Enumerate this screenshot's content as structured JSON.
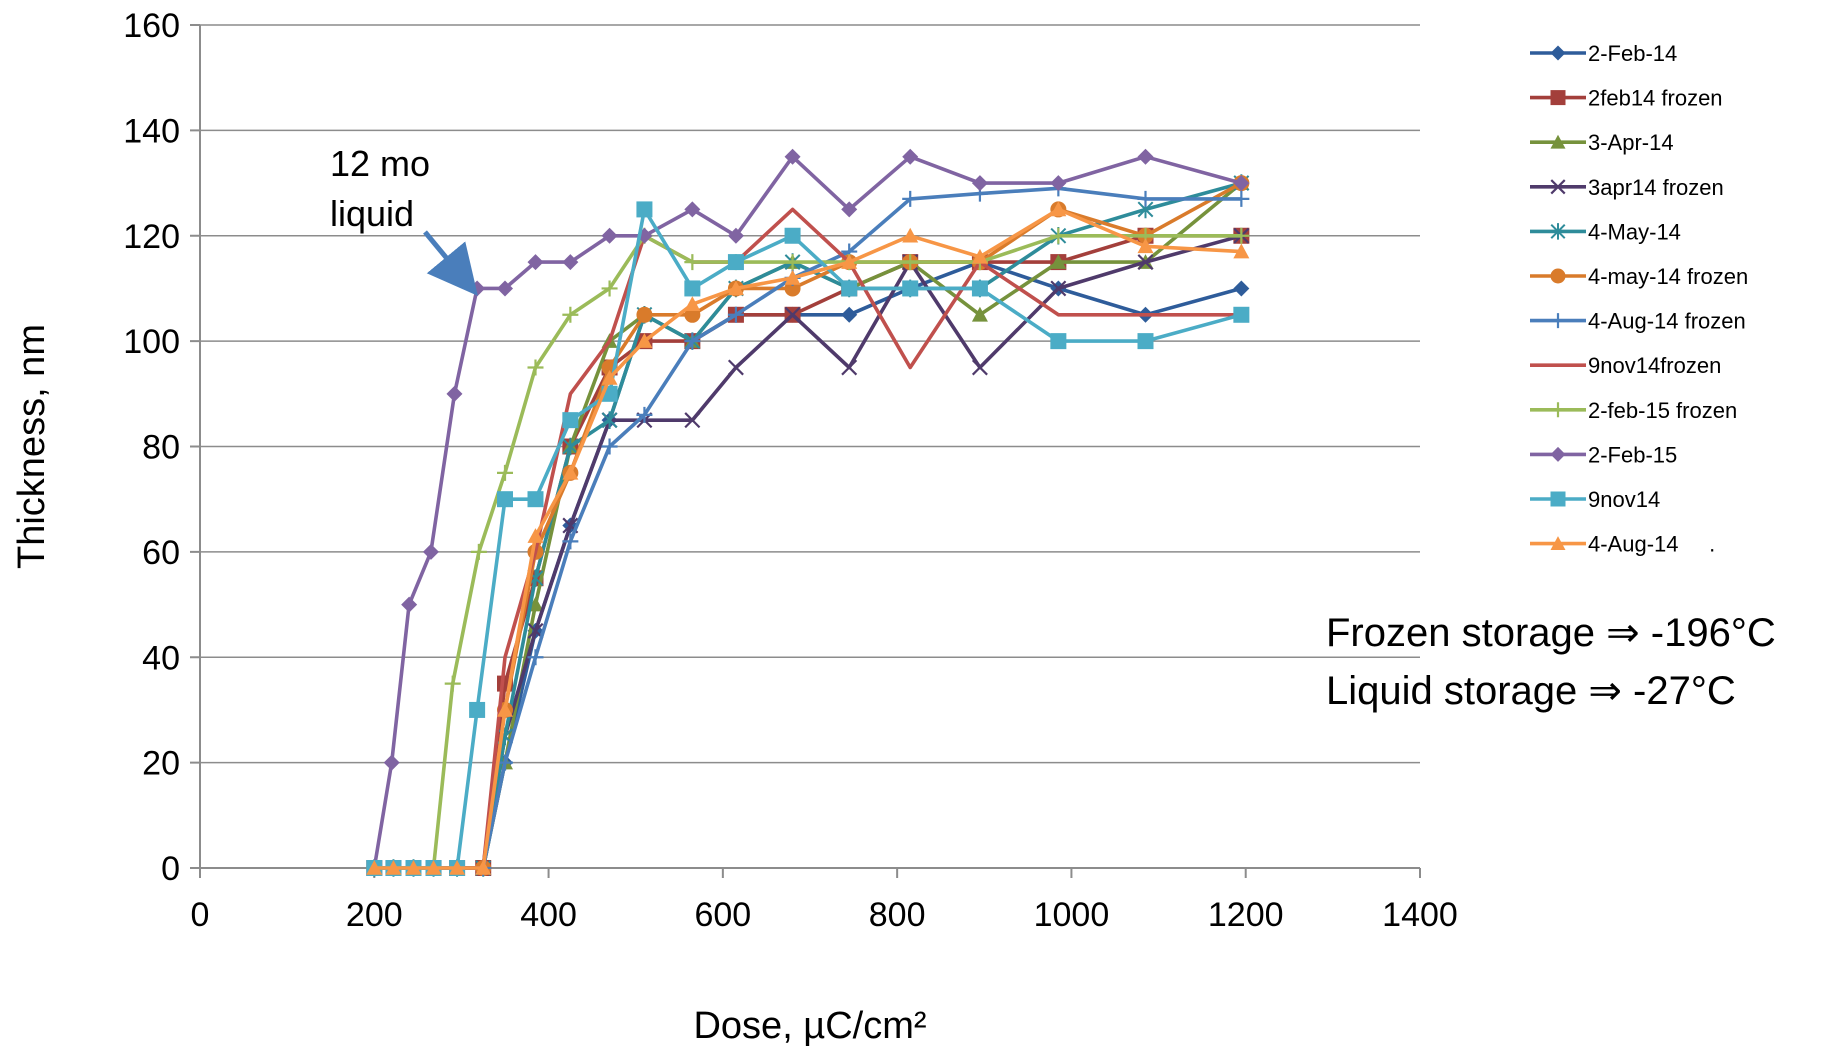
{
  "chart_data": {
    "type": "line",
    "title": "",
    "xlabel": "Dose, µC/cm²",
    "ylabel": "Thickness, nm",
    "xlim": [
      0,
      1400
    ],
    "ylim": [
      0,
      160
    ],
    "x_ticks": [
      0,
      200,
      400,
      600,
      800,
      1000,
      1200,
      1400
    ],
    "y_ticks": [
      0,
      20,
      40,
      60,
      80,
      100,
      120,
      140,
      160
    ],
    "grid": "horizontal",
    "legend_position": "right",
    "annotation": {
      "lines": [
        "12 mo",
        "liquid"
      ],
      "target_series": "2-Feb-15",
      "target_point": [
        318,
        110
      ]
    },
    "notes": [
      "Frozen storage ⇒ -196°C",
      "Liquid storage ⇒ -27°C"
    ],
    "series": [
      {
        "name": "2-Feb-14",
        "color": "#2E5C9A",
        "marker": "diamond",
        "points": [
          [
            200,
            0
          ],
          [
            222,
            0
          ],
          [
            245,
            0
          ],
          [
            268,
            0
          ],
          [
            295,
            0
          ],
          [
            325,
            0
          ],
          [
            350,
            20
          ],
          [
            385,
            45
          ],
          [
            425,
            65
          ],
          [
            470,
            85
          ],
          [
            510,
            105
          ],
          [
            565,
            100
          ],
          [
            615,
            105
          ],
          [
            680,
            105
          ],
          [
            745,
            105
          ],
          [
            815,
            110
          ],
          [
            895,
            115
          ],
          [
            985,
            110
          ],
          [
            1085,
            105
          ],
          [
            1195,
            110
          ]
        ]
      },
      {
        "name": "2feb14 frozen",
        "color": "#A33F3B",
        "marker": "square",
        "points": [
          [
            200,
            0
          ],
          [
            222,
            0
          ],
          [
            245,
            0
          ],
          [
            268,
            0
          ],
          [
            295,
            0
          ],
          [
            325,
            0
          ],
          [
            350,
            35
          ],
          [
            385,
            55
          ],
          [
            425,
            80
          ],
          [
            470,
            95
          ],
          [
            510,
            100
          ],
          [
            565,
            100
          ],
          [
            615,
            105
          ],
          [
            680,
            105
          ],
          [
            745,
            110
          ],
          [
            815,
            115
          ],
          [
            895,
            115
          ],
          [
            985,
            115
          ],
          [
            1085,
            120
          ],
          [
            1195,
            120
          ]
        ]
      },
      {
        "name": "3-Apr-14",
        "color": "#76923C",
        "marker": "triangle",
        "points": [
          [
            200,
            0
          ],
          [
            222,
            0
          ],
          [
            245,
            0
          ],
          [
            268,
            0
          ],
          [
            295,
            0
          ],
          [
            325,
            0
          ],
          [
            350,
            20
          ],
          [
            385,
            50
          ],
          [
            425,
            80
          ],
          [
            470,
            100
          ],
          [
            510,
            105
          ],
          [
            565,
            100
          ],
          [
            615,
            110
          ],
          [
            680,
            115
          ],
          [
            745,
            110
          ],
          [
            815,
            115
          ],
          [
            895,
            105
          ],
          [
            985,
            115
          ],
          [
            1085,
            115
          ],
          [
            1195,
            130
          ]
        ]
      },
      {
        "name": "3apr14 frozen",
        "color": "#4F3A6B",
        "marker": "x",
        "points": [
          [
            200,
            0
          ],
          [
            222,
            0
          ],
          [
            245,
            0
          ],
          [
            268,
            0
          ],
          [
            295,
            0
          ],
          [
            325,
            0
          ],
          [
            350,
            25
          ],
          [
            385,
            45
          ],
          [
            425,
            65
          ],
          [
            470,
            85
          ],
          [
            510,
            85
          ],
          [
            565,
            85
          ],
          [
            615,
            95
          ],
          [
            680,
            105
          ],
          [
            745,
            95
          ],
          [
            815,
            115
          ],
          [
            895,
            95
          ],
          [
            985,
            110
          ],
          [
            1085,
            115
          ],
          [
            1195,
            120
          ]
        ]
      },
      {
        "name": "4-May-14",
        "color": "#2E8C9A",
        "marker": "star",
        "points": [
          [
            200,
            0
          ],
          [
            222,
            0
          ],
          [
            245,
            0
          ],
          [
            268,
            0
          ],
          [
            295,
            0
          ],
          [
            325,
            0
          ],
          [
            350,
            25
          ],
          [
            385,
            55
          ],
          [
            425,
            80
          ],
          [
            470,
            85
          ],
          [
            510,
            105
          ],
          [
            565,
            100
          ],
          [
            615,
            110
          ],
          [
            680,
            115
          ],
          [
            745,
            110
          ],
          [
            815,
            110
          ],
          [
            895,
            110
          ],
          [
            985,
            120
          ],
          [
            1085,
            125
          ],
          [
            1195,
            130
          ]
        ]
      },
      {
        "name": "4-may-14 frozen",
        "color": "#D97B2B",
        "marker": "circle",
        "points": [
          [
            200,
            0
          ],
          [
            222,
            0
          ],
          [
            245,
            0
          ],
          [
            268,
            0
          ],
          [
            295,
            0
          ],
          [
            325,
            0
          ],
          [
            350,
            30
          ],
          [
            385,
            60
          ],
          [
            425,
            75
          ],
          [
            470,
            95
          ],
          [
            510,
            105
          ],
          [
            565,
            105
          ],
          [
            615,
            110
          ],
          [
            680,
            110
          ],
          [
            745,
            115
          ],
          [
            815,
            115
          ],
          [
            895,
            115
          ],
          [
            985,
            125
          ],
          [
            1085,
            120
          ],
          [
            1195,
            130
          ]
        ]
      },
      {
        "name": "4-Aug-14 frozen",
        "color": "#4A7EBB",
        "marker": "plus",
        "points": [
          [
            200,
            0
          ],
          [
            222,
            0
          ],
          [
            245,
            0
          ],
          [
            268,
            0
          ],
          [
            295,
            0
          ],
          [
            325,
            0
          ],
          [
            350,
            20
          ],
          [
            385,
            40
          ],
          [
            425,
            62
          ],
          [
            470,
            80
          ],
          [
            510,
            86
          ],
          [
            565,
            100
          ],
          [
            615,
            105
          ],
          [
            680,
            112
          ],
          [
            745,
            117
          ],
          [
            815,
            127
          ],
          [
            895,
            128
          ],
          [
            985,
            129
          ],
          [
            1085,
            127
          ],
          [
            1195,
            127
          ]
        ]
      },
      {
        "name": "9nov14frozen",
        "color": "#C0504D",
        "marker": "none",
        "points": [
          [
            200,
            0
          ],
          [
            222,
            0
          ],
          [
            245,
            0
          ],
          [
            268,
            0
          ],
          [
            295,
            0
          ],
          [
            325,
            0
          ],
          [
            350,
            40
          ],
          [
            385,
            60
          ],
          [
            425,
            90
          ],
          [
            470,
            100
          ],
          [
            510,
            120
          ],
          [
            565,
            115
          ],
          [
            615,
            115
          ],
          [
            680,
            125
          ],
          [
            745,
            115
          ],
          [
            815,
            95
          ],
          [
            895,
            115
          ],
          [
            985,
            105
          ],
          [
            1085,
            105
          ],
          [
            1195,
            105
          ]
        ]
      },
      {
        "name": "2-feb-15 frozen",
        "color": "#9BBB59",
        "marker": "plus",
        "points": [
          [
            200,
            0
          ],
          [
            222,
            0
          ],
          [
            245,
            0
          ],
          [
            268,
            0
          ],
          [
            290,
            35
          ],
          [
            320,
            60
          ],
          [
            350,
            75
          ],
          [
            385,
            95
          ],
          [
            425,
            105
          ],
          [
            470,
            110
          ],
          [
            510,
            120
          ],
          [
            565,
            115
          ],
          [
            615,
            115
          ],
          [
            680,
            115
          ],
          [
            745,
            115
          ],
          [
            815,
            115
          ],
          [
            895,
            115
          ],
          [
            985,
            120
          ],
          [
            1085,
            120
          ],
          [
            1195,
            120
          ]
        ]
      },
      {
        "name": "2-Feb-15",
        "color": "#8064A2",
        "marker": "diamond",
        "points": [
          [
            200,
            0
          ],
          [
            220,
            20
          ],
          [
            240,
            50
          ],
          [
            265,
            60
          ],
          [
            292,
            90
          ],
          [
            318,
            110
          ],
          [
            350,
            110
          ],
          [
            385,
            115
          ],
          [
            425,
            115
          ],
          [
            470,
            120
          ],
          [
            510,
            120
          ],
          [
            565,
            125
          ],
          [
            615,
            120
          ],
          [
            680,
            135
          ],
          [
            745,
            125
          ],
          [
            815,
            135
          ],
          [
            895,
            130
          ],
          [
            985,
            130
          ],
          [
            1085,
            135
          ],
          [
            1195,
            130
          ]
        ]
      },
      {
        "name": "9nov14",
        "color": "#4BACC6",
        "marker": "square",
        "points": [
          [
            200,
            0
          ],
          [
            222,
            0
          ],
          [
            245,
            0
          ],
          [
            268,
            0
          ],
          [
            295,
            0
          ],
          [
            318,
            30
          ],
          [
            350,
            70
          ],
          [
            385,
            70
          ],
          [
            425,
            85
          ],
          [
            470,
            90
          ],
          [
            510,
            125
          ],
          [
            565,
            110
          ],
          [
            615,
            115
          ],
          [
            680,
            120
          ],
          [
            745,
            110
          ],
          [
            815,
            110
          ],
          [
            895,
            110
          ],
          [
            985,
            100
          ],
          [
            1085,
            100
          ],
          [
            1195,
            105
          ]
        ]
      },
      {
        "name": "4-Aug-14     .",
        "color": "#F79646",
        "marker": "triangle",
        "points": [
          [
            200,
            0
          ],
          [
            222,
            0
          ],
          [
            245,
            0
          ],
          [
            268,
            0
          ],
          [
            295,
            0
          ],
          [
            325,
            0
          ],
          [
            350,
            30
          ],
          [
            385,
            63
          ],
          [
            425,
            75
          ],
          [
            470,
            93
          ],
          [
            510,
            100
          ],
          [
            565,
            107
          ],
          [
            615,
            110
          ],
          [
            680,
            112
          ],
          [
            745,
            115
          ],
          [
            815,
            120
          ],
          [
            895,
            116
          ],
          [
            985,
            125
          ],
          [
            1085,
            118
          ],
          [
            1195,
            117
          ]
        ]
      }
    ]
  }
}
